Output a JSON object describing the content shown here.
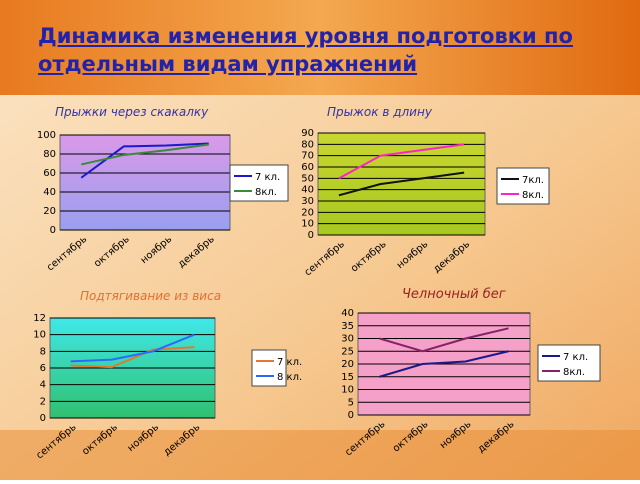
{
  "title": "Динамика изменения уровня подготовки по отдельным видам упражнений",
  "chart_data": [
    {
      "type": "line",
      "title": "Прыжки через скакалку",
      "title_color": "#3333aa",
      "categories": [
        "сентябрь",
        "октябрь",
        "ноябрь",
        "декабрь"
      ],
      "series": [
        {
          "name": "7 кл.",
          "color": "#1a1acc",
          "values": [
            55,
            88,
            89,
            91
          ]
        },
        {
          "name": "8кл.",
          "color": "#3a8a3a",
          "values": [
            69,
            79,
            84,
            90
          ]
        }
      ],
      "ylim": [
        0,
        100
      ],
      "yticks": [
        0,
        20,
        40,
        60,
        80,
        100
      ],
      "grid": true,
      "plot_colors": [
        "#d99ae8",
        "#9a9ef0"
      ]
    },
    {
      "type": "line",
      "title": "Прыжок в длину",
      "title_color": "#3333aa",
      "categories": [
        "сентябрь",
        "октябрь",
        "ноябрь",
        "декабрь"
      ],
      "series": [
        {
          "name": "7кл.",
          "color": "#111111",
          "values": [
            35,
            45,
            50,
            55
          ]
        },
        {
          "name": "8кл.",
          "color": "#ff22cc",
          "values": [
            50,
            70,
            75,
            80
          ]
        }
      ],
      "ylim": [
        0,
        90
      ],
      "yticks": [
        0,
        10,
        20,
        30,
        40,
        50,
        60,
        70,
        80,
        90
      ],
      "grid": true,
      "plot_colors": [
        "#c8d630",
        "#a8c820"
      ]
    },
    {
      "type": "line",
      "title": "Подтягивание из виса",
      "title_color": "#e07030",
      "categories": [
        "сентябрь",
        "октябрь",
        "ноябрь",
        "декабрь"
      ],
      "series": [
        {
          "name": "7 кл.",
          "color": "#e07a30",
          "values": [
            6.3,
            6.1,
            8.2,
            8.5
          ]
        },
        {
          "name": "8 кл.",
          "color": "#2a6aff",
          "values": [
            6.8,
            7,
            8,
            10
          ]
        }
      ],
      "ylim": [
        0,
        12
      ],
      "yticks": [
        0,
        2,
        4,
        6,
        8,
        10,
        12
      ],
      "grid": true,
      "plot_colors": [
        "#40e8e8",
        "#30c070"
      ]
    },
    {
      "type": "line",
      "title": "Челночный бег",
      "title_color": "#992222",
      "categories": [
        "сентябрь",
        "октябрь",
        "ноябрь",
        "декабрь"
      ],
      "series": [
        {
          "name": "7 кл.",
          "color": "#1a1a88",
          "values": [
            15,
            20,
            21,
            25
          ]
        },
        {
          "name": "8кл.",
          "color": "#882266",
          "values": [
            30,
            25,
            30,
            34
          ]
        }
      ],
      "ylim": [
        0,
        40
      ],
      "yticks": [
        0,
        5,
        10,
        15,
        20,
        25,
        30,
        35,
        40
      ],
      "grid": true,
      "plot_colors": [
        "#f5a0c8",
        "#f5a0c8"
      ]
    }
  ]
}
